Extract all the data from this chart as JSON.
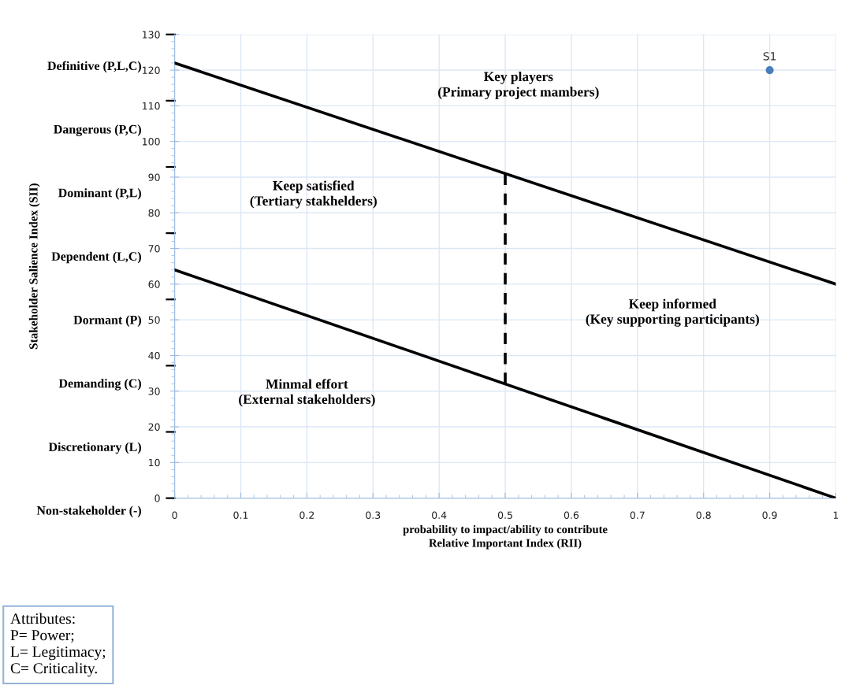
{
  "chart_data": {
    "type": "line",
    "xlabel": "probability to impact/ability to contribute\nRelative Important Index (RII)",
    "xlim": [
      0,
      1
    ],
    "xticks": [
      0,
      0.1,
      0.2,
      0.3,
      0.4,
      0.5,
      0.6,
      0.7,
      0.8,
      0.9,
      1
    ],
    "ylim": [
      0,
      130
    ],
    "yticks": [
      0,
      10,
      20,
      30,
      40,
      50,
      60,
      70,
      80,
      90,
      100,
      110,
      120,
      130
    ],
    "grid": true,
    "series": [
      {
        "color": "#000000",
        "x": [
          0,
          1
        ],
        "values": [
          122,
          60
        ],
        "line_style": "solid"
      },
      {
        "color": "#000000",
        "x": [
          0,
          1
        ],
        "values": [
          64,
          0
        ],
        "line_style": "solid"
      },
      {
        "color": "#000000",
        "x": [
          0.5,
          0.5
        ],
        "values": [
          32,
          91
        ],
        "line_style": "dashed"
      },
      {
        "type": "scatter",
        "name": "S1",
        "color": "#4a7ebb",
        "x": [
          0.9
        ],
        "values": [
          120
        ],
        "marker": "circle"
      }
    ],
    "annotations": [
      "Key players\n(Primary project mambers)",
      "Keep satisfied\n(Tertiary stakhelders)",
      "Keep informed\n(Key supporting participants)",
      "Minmal effort\n(External stakeholders)",
      "Definitive (P,L,C)",
      "Dangerous (P,C)",
      "Dominant (P,L)",
      "Dependent (L,C)",
      "Dormant (P)",
      "Demanding (C)",
      "Discretionary (L)",
      "Non-stakeholder (-)",
      "Stakeholder Salience Index (SII)",
      "Attributes:\nP= Power;\nL= Legitimacy;\nC= Criticality."
    ]
  }
}
